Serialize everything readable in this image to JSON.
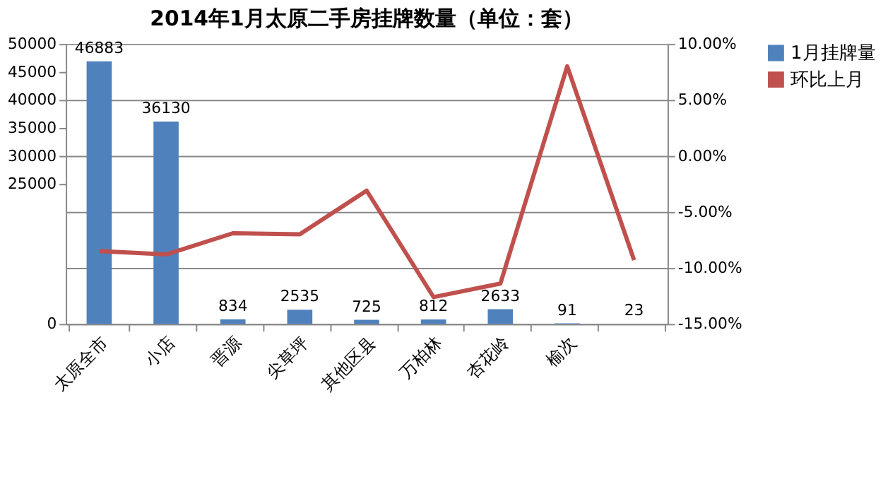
{
  "chart_data": {
    "type": "bar",
    "title": "2014年1月太原二手房挂牌数量（单位：套）",
    "categories": [
      "太原全市",
      "小店",
      "晋源",
      "尖草坪",
      "其他区县",
      "万柏林",
      "杏花岭",
      "榆次",
      null
    ],
    "series": [
      {
        "name": "1月挂牌量",
        "color": "#4f81bd",
        "values": [
          46883,
          36130,
          834,
          2535,
          725,
          812,
          2633,
          91,
          23
        ],
        "value_labels": [
          "46883",
          "36130",
          "834",
          "2535",
          "725",
          "812",
          "2633",
          "91",
          "23"
        ]
      },
      {
        "name": "环比上月",
        "type": "line",
        "axis": "y2",
        "color": "#c0504d",
        "values": [
          -8.5,
          -8.8,
          -6.9,
          -7.0,
          -3.1,
          -12.6,
          -11.4,
          8.0,
          -9.3
        ]
      }
    ],
    "ylim": [
      0,
      50000
    ],
    "yticks": [
      0,
      25000,
      30000,
      35000,
      40000,
      45000,
      50000
    ],
    "y2lim": [
      -15,
      10
    ],
    "y2ticks": [
      {
        "value": -15,
        "label": "-15.00%"
      },
      {
        "value": -10,
        "label": "-10.00%"
      },
      {
        "value": -5,
        "label": "-5.00%"
      },
      {
        "value": 0,
        "label": "0.00%"
      },
      {
        "value": 5,
        "label": "5.00%"
      },
      {
        "value": 10,
        "label": "10.00%"
      }
    ],
    "grid": "y2",
    "legend": "right",
    "marker": "none",
    "line_style": "solid"
  }
}
